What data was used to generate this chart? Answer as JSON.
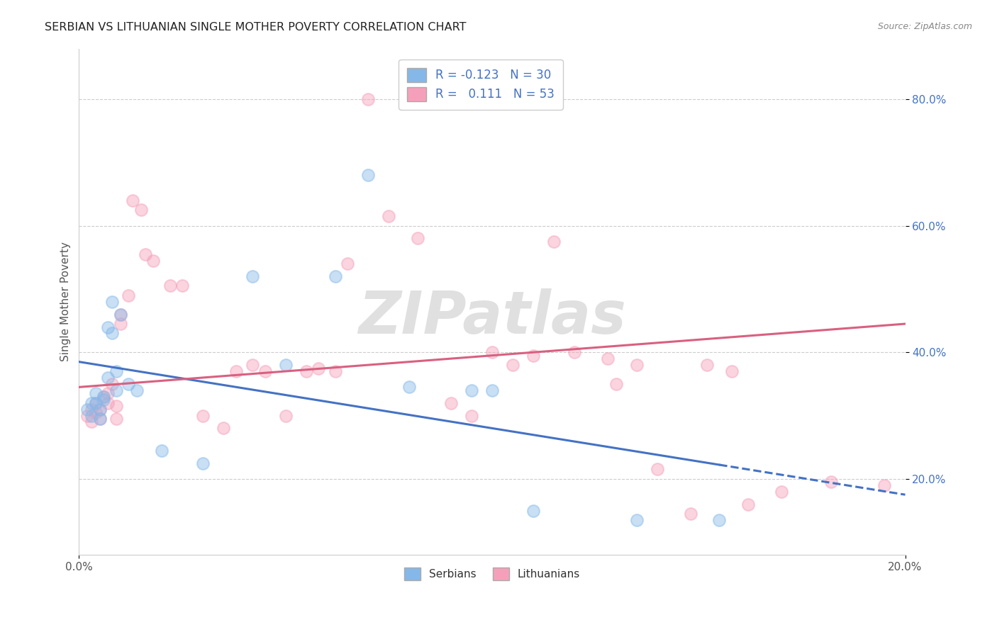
{
  "title": "SERBIAN VS LITHUANIAN SINGLE MOTHER POVERTY CORRELATION CHART",
  "source": "Source: ZipAtlas.com",
  "xlabel_serbian": "Serbians",
  "xlabel_lithuanian": "Lithuanians",
  "ylabel": "Single Mother Poverty",
  "xlim": [
    0.0,
    0.2
  ],
  "ylim": [
    0.08,
    0.88
  ],
  "yticks": [
    0.2,
    0.4,
    0.6,
    0.8
  ],
  "ytick_labels": [
    "20.0%",
    "40.0%",
    "60.0%",
    "80.0%"
  ],
  "serbian_R": -0.123,
  "serbian_N": 30,
  "lithuanian_R": 0.111,
  "lithuanian_N": 53,
  "serbian_color": "#85b8e8",
  "lithuanian_color": "#f5a0ba",
  "trend_serbian_color": "#4472c4",
  "trend_lithuanian_color": "#d96080",
  "background_color": "#ffffff",
  "grid_color": "#cccccc",
  "watermark": "ZIPatlas",
  "trend_serbian_intercept": 0.385,
  "trend_serbian_slope": -1.05,
  "trend_lithuanian_intercept": 0.345,
  "trend_lithuanian_slope": 0.5,
  "trend_serbian_solid_end": 0.155,
  "serbian_x": [
    0.002,
    0.003,
    0.003,
    0.004,
    0.004,
    0.005,
    0.005,
    0.006,
    0.006,
    0.007,
    0.007,
    0.008,
    0.008,
    0.009,
    0.009,
    0.01,
    0.012,
    0.014,
    0.02,
    0.03,
    0.042,
    0.05,
    0.062,
    0.07,
    0.08,
    0.095,
    0.1,
    0.11,
    0.135,
    0.155
  ],
  "serbian_y": [
    0.31,
    0.32,
    0.3,
    0.335,
    0.32,
    0.295,
    0.31,
    0.325,
    0.33,
    0.44,
    0.36,
    0.43,
    0.48,
    0.37,
    0.34,
    0.46,
    0.35,
    0.34,
    0.245,
    0.225,
    0.52,
    0.38,
    0.52,
    0.68,
    0.345,
    0.34,
    0.34,
    0.15,
    0.135,
    0.135
  ],
  "lithuanian_x": [
    0.002,
    0.003,
    0.003,
    0.004,
    0.004,
    0.005,
    0.005,
    0.006,
    0.007,
    0.007,
    0.008,
    0.009,
    0.009,
    0.01,
    0.01,
    0.012,
    0.013,
    0.015,
    0.016,
    0.018,
    0.022,
    0.025,
    0.03,
    0.035,
    0.038,
    0.042,
    0.045,
    0.05,
    0.055,
    0.058,
    0.062,
    0.065,
    0.07,
    0.075,
    0.082,
    0.09,
    0.095,
    0.1,
    0.105,
    0.11,
    0.115,
    0.12,
    0.128,
    0.13,
    0.135,
    0.14,
    0.148,
    0.152,
    0.158,
    0.162,
    0.17,
    0.182,
    0.195
  ],
  "lithuanian_y": [
    0.3,
    0.29,
    0.31,
    0.305,
    0.32,
    0.295,
    0.31,
    0.33,
    0.32,
    0.335,
    0.35,
    0.295,
    0.315,
    0.445,
    0.46,
    0.49,
    0.64,
    0.625,
    0.555,
    0.545,
    0.505,
    0.505,
    0.3,
    0.28,
    0.37,
    0.38,
    0.37,
    0.3,
    0.37,
    0.375,
    0.37,
    0.54,
    0.8,
    0.615,
    0.58,
    0.32,
    0.3,
    0.4,
    0.38,
    0.395,
    0.575,
    0.4,
    0.39,
    0.35,
    0.38,
    0.215,
    0.145,
    0.38,
    0.37,
    0.16,
    0.18,
    0.195,
    0.19
  ]
}
